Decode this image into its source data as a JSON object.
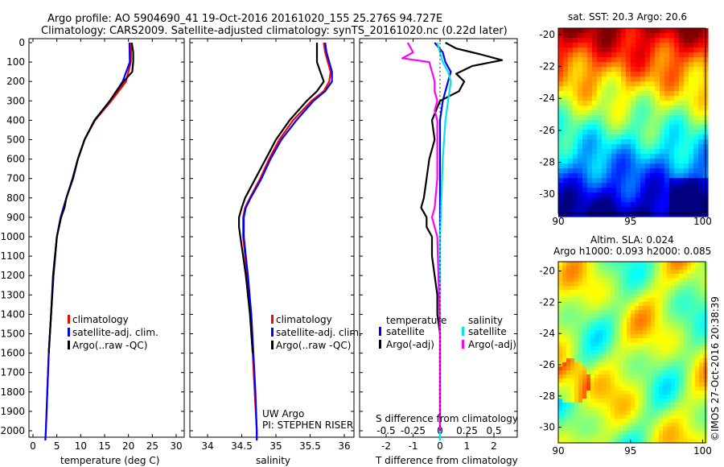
{
  "header": {
    "line1": "Argo profile: AO 5904690_41 19-Oct-2016 20161020_155 25.276S 94.727E",
    "line2": "Climatology: CARS2009. Satellite-adjusted climatology: synTS_20161020.nc (0.22d later)"
  },
  "side_text": "©IMOS 27-Oct-2016 20:38:39",
  "chart_data": [
    {
      "id": "temperature",
      "type": "line",
      "xlabel": "temperature (deg C)",
      "ylabel": "",
      "xlim": [
        -2,
        32
      ],
      "ylim": [
        2100,
        0
      ],
      "xticks": [
        "0",
        "5",
        "10",
        "15",
        "20",
        "25",
        "30"
      ],
      "xtick_values": [
        0,
        5,
        10,
        15,
        20,
        25,
        30
      ],
      "yticks": [
        "0",
        "100",
        "200",
        "300",
        "400",
        "500",
        "600",
        "700",
        "800",
        "900",
        "1000",
        "1100",
        "1200",
        "1300",
        "1400",
        "1500",
        "1600",
        "1700",
        "1800",
        "1900",
        "2000"
      ],
      "ytick_values": [
        0,
        100,
        200,
        300,
        400,
        500,
        600,
        700,
        800,
        900,
        1000,
        1100,
        1200,
        1300,
        1400,
        1500,
        1600,
        1700,
        1800,
        1900,
        2000
      ],
      "legend": [
        "climatology",
        "satellite-adj. clim.",
        "Argo(..raw -QC)"
      ],
      "series": [
        {
          "name": "climatology",
          "color": "#ff0000",
          "depth": [
            0,
            100,
            200,
            300,
            400,
            500,
            600,
            700,
            800,
            900,
            1000,
            1200,
            1400,
            1600,
            1800,
            2000,
            2050
          ],
          "values": [
            20.6,
            20.5,
            19.5,
            16.4,
            13.0,
            10.8,
            9.4,
            8.4,
            7.0,
            5.8,
            5.0,
            4.3,
            3.8,
            3.3,
            3.0,
            2.7,
            2.6
          ]
        },
        {
          "name": "satellite-adj. clim.",
          "color": "#0000ff",
          "depth": [
            0,
            100,
            200,
            300,
            400,
            500,
            600,
            700,
            800,
            900,
            1000,
            1200,
            1400,
            1600,
            1800,
            2000,
            2050
          ],
          "values": [
            20.2,
            20.3,
            18.8,
            16.1,
            12.9,
            10.8,
            9.4,
            8.4,
            7.0,
            5.8,
            5.0,
            4.3,
            3.8,
            3.3,
            3.0,
            2.7,
            2.6
          ]
        },
        {
          "name": "Argo(..raw -QC)",
          "color": "#000000",
          "depth": [
            0,
            50,
            100,
            150,
            200,
            250,
            300,
            400,
            500,
            600,
            700,
            800,
            850,
            900,
            1000,
            1200,
            1400,
            1600
          ],
          "values": [
            20.7,
            21.0,
            21.0,
            20.8,
            19.0,
            17.5,
            16.1,
            12.9,
            10.8,
            9.4,
            8.3,
            7.0,
            6.6,
            5.9,
            5.0,
            4.2,
            3.8,
            3.3
          ]
        }
      ]
    },
    {
      "id": "salinity",
      "type": "line",
      "xlabel": "salinity",
      "ylabel": "",
      "xlim": [
        33.8,
        36.1
      ],
      "ylim": [
        2100,
        0
      ],
      "xticks": [
        "34",
        "34.5",
        "35",
        "35.5",
        "36"
      ],
      "xtick_values": [
        34,
        34.5,
        35,
        35.5,
        36
      ],
      "legend": [
        "climatology",
        "satellite-adj. clim.",
        "Argo(..raw -QC)"
      ],
      "annotations": [
        "UW Argo",
        "PI: STEPHEN RISER"
      ],
      "series": [
        {
          "name": "climatology",
          "color": "#ff0000",
          "depth": [
            0,
            50,
            100,
            150,
            200,
            250,
            300,
            400,
            500,
            600,
            700,
            800,
            850,
            900,
            1000,
            1100,
            1200,
            1400,
            1600,
            1800,
            2000,
            2050
          ],
          "values": [
            35.7,
            35.72,
            35.76,
            35.8,
            35.78,
            35.7,
            35.52,
            35.25,
            35.05,
            34.9,
            34.77,
            34.62,
            34.55,
            34.52,
            34.52,
            34.55,
            34.58,
            34.63,
            34.66,
            34.69,
            34.72,
            34.72
          ]
        },
        {
          "name": "satellite-adj. clim.",
          "color": "#0000ff",
          "depth": [
            0,
            50,
            100,
            150,
            200,
            250,
            300,
            400,
            500,
            600,
            700,
            800,
            850,
            900,
            1000,
            1100,
            1200,
            1400,
            1600,
            1800,
            2000,
            2050
          ],
          "values": [
            35.72,
            35.74,
            35.78,
            35.82,
            35.82,
            35.72,
            35.55,
            35.3,
            35.08,
            34.92,
            34.79,
            34.63,
            34.56,
            34.53,
            34.53,
            34.56,
            34.59,
            34.64,
            34.67,
            34.7,
            34.72,
            34.72
          ]
        },
        {
          "name": "Argo(..raw -QC)",
          "color": "#000000",
          "depth": [
            0,
            50,
            100,
            150,
            200,
            250,
            300,
            400,
            500,
            600,
            700,
            800,
            850,
            900,
            950,
            1000,
            1100,
            1200,
            1400,
            1600
          ],
          "values": [
            35.6,
            35.6,
            35.6,
            35.65,
            35.7,
            35.6,
            35.45,
            35.2,
            35.0,
            34.85,
            34.7,
            34.55,
            34.5,
            34.46,
            34.46,
            34.48,
            34.52,
            34.56,
            34.62,
            34.66
          ]
        }
      ]
    },
    {
      "id": "difference",
      "type": "line",
      "xlabel": "T difference from climatology",
      "xlabel_top": "S difference from climatology",
      "xlim": [
        -3,
        3
      ],
      "ylim": [
        2100,
        0
      ],
      "xticks": [
        "-2",
        "-1",
        "0",
        "1",
        "2"
      ],
      "xtick_values": [
        -2,
        -1,
        0,
        1,
        2
      ],
      "sticks": [
        "-0.5",
        "-0.25",
        "0",
        "0.25",
        "0.5"
      ],
      "stick_values": [
        -2,
        -1,
        0,
        1,
        2
      ],
      "legend_temp_title": "temperature",
      "legend_sal_title": "salinity",
      "legend": [
        "satellite",
        "Argo(-adj)",
        "satellite",
        "Argo(-adj)"
      ],
      "series": [
        {
          "name": "T satellite",
          "color": "#0000ff",
          "depth": [
            0,
            50,
            100,
            150,
            200,
            300,
            400,
            600,
            800,
            1000,
            1500,
            2000,
            2050
          ],
          "values": [
            -0.2,
            0.1,
            0.2,
            0.4,
            0.3,
            0.1,
            0.0,
            0.0,
            0.0,
            0.0,
            0.0,
            0.0,
            0.0
          ]
        },
        {
          "name": "T Argo(-adj)",
          "color": "#000000",
          "depth": [
            0,
            30,
            60,
            90,
            120,
            160,
            200,
            250,
            300,
            400,
            500,
            600,
            700,
            800,
            850,
            900,
            950,
            1000,
            1100,
            1200,
            1300,
            1400,
            1500,
            1600,
            1700,
            1800,
            1900,
            2000
          ],
          "values": [
            0.2,
            0.6,
            1.5,
            2.3,
            1.2,
            0.6,
            0.9,
            0.7,
            0.0,
            -0.3,
            -0.2,
            -0.4,
            -0.5,
            -0.6,
            -0.7,
            -0.5,
            -0.5,
            -0.3,
            -0.3,
            -0.2,
            -0.1,
            -0.1,
            0.0,
            0.0,
            0.0,
            0.0,
            0.0,
            0.0
          ]
        },
        {
          "name": "S satellite",
          "color": "#00e5e5",
          "depth": [
            0,
            50,
            100,
            150,
            200,
            300,
            400,
            600,
            800,
            1000,
            1500,
            2000,
            2050
          ],
          "values": [
            -0.1,
            0.0,
            0.1,
            0.3,
            0.4,
            0.3,
            0.2,
            0.1,
            0.05,
            0.0,
            0.0,
            0.0,
            0.0
          ]
        },
        {
          "name": "S Argo(-adj)",
          "color": "#ff00ff",
          "depth": [
            0,
            50,
            80,
            100,
            150,
            200,
            250,
            300,
            350,
            400,
            500,
            700,
            850,
            900,
            950,
            1000,
            1500,
            2000
          ],
          "values": [
            -1.2,
            -1.0,
            -1.4,
            -0.4,
            -0.3,
            -0.2,
            -0.2,
            -0.1,
            -0.2,
            -0.1,
            -0.1,
            -0.1,
            -0.2,
            -0.3,
            -0.2,
            -0.1,
            0.0,
            0.0
          ]
        }
      ]
    }
  ],
  "maps": [
    {
      "id": "sst",
      "title": "sat. SST: 20.3 Argo: 20.6",
      "subtitle": "",
      "xticks": [
        "90",
        "95",
        "100"
      ],
      "xtick_values": [
        90,
        95,
        100
      ],
      "yticks": [
        "-20",
        "-22",
        "-24",
        "-26",
        "-28",
        "-30"
      ],
      "ytick_values": [
        -20,
        -22,
        -24,
        -26,
        -28,
        -30
      ],
      "xlim": [
        90,
        100.2
      ],
      "ylim": [
        -31.2,
        -19.6
      ]
    },
    {
      "id": "sla",
      "title": "Altim. SLA: 0.024",
      "subtitle": "Argo h1000: 0.093 h2000: 0.085",
      "xticks": [
        "90",
        "95",
        "100"
      ],
      "xtick_values": [
        90,
        95,
        100
      ],
      "yticks": [
        "-20",
        "-22",
        "-24",
        "-26",
        "-28",
        "-30"
      ],
      "ytick_values": [
        -20,
        -22,
        -24,
        -26,
        -28,
        -30
      ],
      "xlim": [
        90,
        100.2
      ],
      "ylim": [
        -31.0,
        -19.4
      ]
    }
  ]
}
